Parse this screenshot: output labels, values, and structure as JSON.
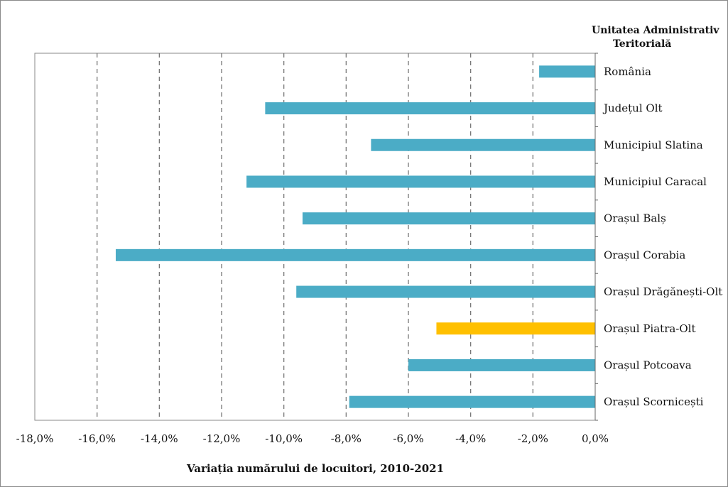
{
  "chart_data": {
    "type": "bar",
    "orientation": "horizontal",
    "categories": [
      "România",
      "Județul Olt",
      "Municipiul Slatina",
      "Municipiul Caracal",
      "Orașul Balș",
      "Orașul Corabia",
      "Orașul Drăgănești-Olt",
      "Orașul Piatra-Olt",
      "Orașul Potcoava",
      "Orașul Scornicești"
    ],
    "values": [
      -1.8,
      -10.6,
      -7.2,
      -11.2,
      -9.4,
      -15.4,
      -9.6,
      -5.1,
      -6.0,
      -7.9
    ],
    "bar_colors": [
      "#4bacc6",
      "#4bacc6",
      "#4bacc6",
      "#4bacc6",
      "#4bacc6",
      "#4bacc6",
      "#4bacc6",
      "#ffc000",
      "#4bacc6",
      "#4bacc6"
    ],
    "xlim": [
      -18,
      0
    ],
    "x_ticks": [
      "-18,0%",
      "-16,0%",
      "-14,0%",
      "-12,0%",
      "-10,0%",
      "-8,0%",
      "-6,0%",
      "-4,0%",
      "-2,0%",
      "0,0%"
    ],
    "xlabel": "Variația numărului de locuitori, 2010-2021",
    "legend_title_lines": [
      "Unitatea Administrativ",
      "Teritorială"
    ],
    "grid": "vertical dashed",
    "label_position": "right of zero line"
  }
}
